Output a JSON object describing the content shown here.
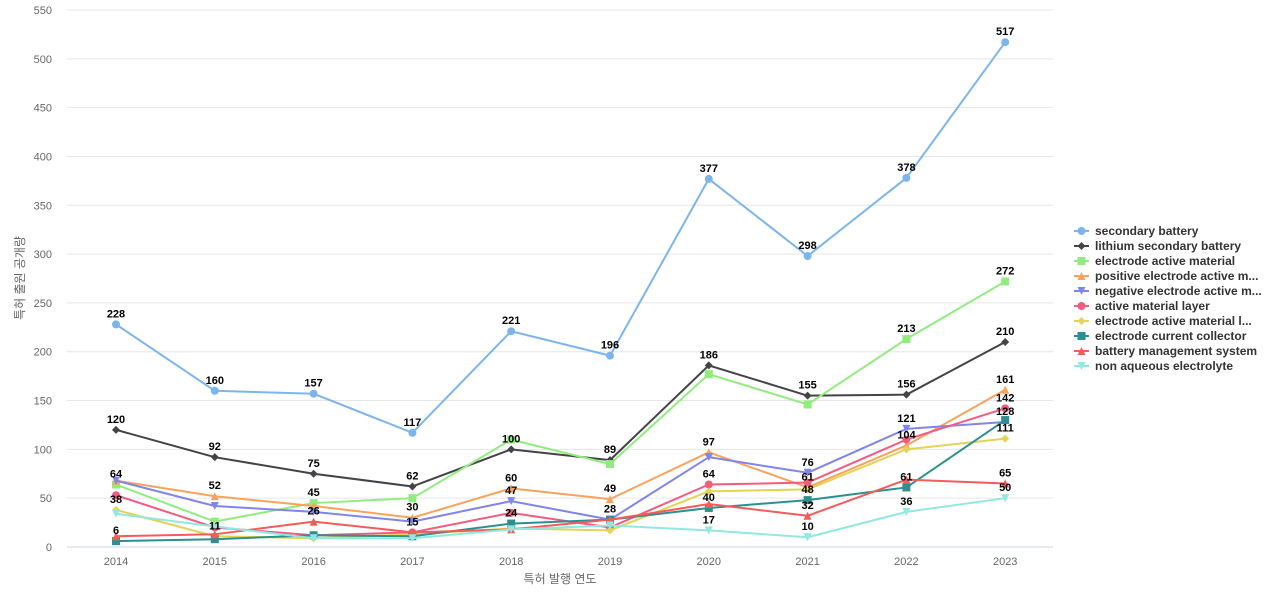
{
  "chart_data": {
    "type": "line",
    "title": "",
    "xlabel": "특허 발행 연도",
    "ylabel": "특허 출원 공개량",
    "x": [
      "2014",
      "2015",
      "2016",
      "2017",
      "2018",
      "2019",
      "2020",
      "2021",
      "2022",
      "2023"
    ],
    "ylim": [
      0,
      550
    ],
    "yticks": [
      0,
      50,
      100,
      150,
      200,
      250,
      300,
      350,
      400,
      450,
      500,
      550
    ],
    "grid": true,
    "legend_position": "right",
    "series": [
      {
        "name": "secondary battery",
        "color": "#7cb5ec",
        "marker": "circle",
        "values": [
          228,
          160,
          157,
          117,
          221,
          196,
          377,
          298,
          378,
          517
        ],
        "labels": [
          true,
          true,
          true,
          true,
          true,
          true,
          true,
          true,
          true,
          true
        ]
      },
      {
        "name": "lithium secondary battery",
        "color": "#434348",
        "marker": "diamond",
        "values": [
          120,
          92,
          75,
          62,
          100,
          89,
          186,
          155,
          156,
          210
        ],
        "labels": [
          true,
          true,
          true,
          true,
          true,
          true,
          true,
          true,
          true,
          true
        ]
      },
      {
        "name": "electrode active material",
        "color": "#90ed7d",
        "marker": "square",
        "values": [
          64,
          26,
          45,
          50,
          110,
          85,
          177,
          146,
          213,
          272
        ],
        "labels": [
          true,
          false,
          true,
          false,
          false,
          false,
          false,
          false,
          true,
          true
        ]
      },
      {
        "name": "positive electrode active m...",
        "color": "#f7a35c",
        "marker": "triangle",
        "values": [
          68,
          52,
          42,
          30,
          60,
          49,
          97,
          61,
          104,
          161
        ],
        "labels": [
          false,
          true,
          false,
          true,
          true,
          true,
          true,
          true,
          true,
          true
        ]
      },
      {
        "name": "negative electrode active m...",
        "color": "#8085e9",
        "marker": "triangle-down",
        "values": [
          68,
          42,
          36,
          26,
          47,
          28,
          92,
          76,
          121,
          128
        ],
        "labels": [
          false,
          false,
          false,
          false,
          true,
          true,
          false,
          true,
          true,
          true
        ]
      },
      {
        "name": "active material layer",
        "color": "#f15c80",
        "marker": "circle",
        "values": [
          53,
          20,
          12,
          15,
          35,
          20,
          64,
          66,
          110,
          142
        ],
        "labels": [
          false,
          false,
          false,
          true,
          false,
          false,
          true,
          false,
          false,
          true
        ]
      },
      {
        "name": "electrode active material l...",
        "color": "#e4d354",
        "marker": "diamond",
        "values": [
          38,
          11,
          9,
          13,
          19,
          17,
          57,
          59,
          100,
          111
        ],
        "labels": [
          true,
          true,
          false,
          false,
          false,
          false,
          false,
          false,
          false,
          true
        ]
      },
      {
        "name": "electrode current collector",
        "color": "#2b908f",
        "marker": "square",
        "values": [
          6,
          8,
          12,
          11,
          24,
          28,
          40,
          48,
          61,
          130
        ],
        "labels": [
          true,
          false,
          false,
          false,
          true,
          false,
          true,
          true,
          true,
          false
        ]
      },
      {
        "name": "battery management system",
        "color": "#f45b5b",
        "marker": "triangle",
        "values": [
          11,
          13,
          26,
          15,
          18,
          28,
          44,
          32,
          69,
          65
        ],
        "labels": [
          false,
          false,
          true,
          false,
          false,
          false,
          false,
          true,
          false,
          true
        ]
      },
      {
        "name": "non aqueous electrolyte",
        "color": "#91e8e1",
        "marker": "triangle-down",
        "values": [
          34,
          21,
          9,
          9,
          18,
          22,
          17,
          10,
          36,
          50
        ],
        "labels": [
          false,
          false,
          false,
          false,
          false,
          false,
          true,
          true,
          true,
          true
        ]
      }
    ]
  }
}
